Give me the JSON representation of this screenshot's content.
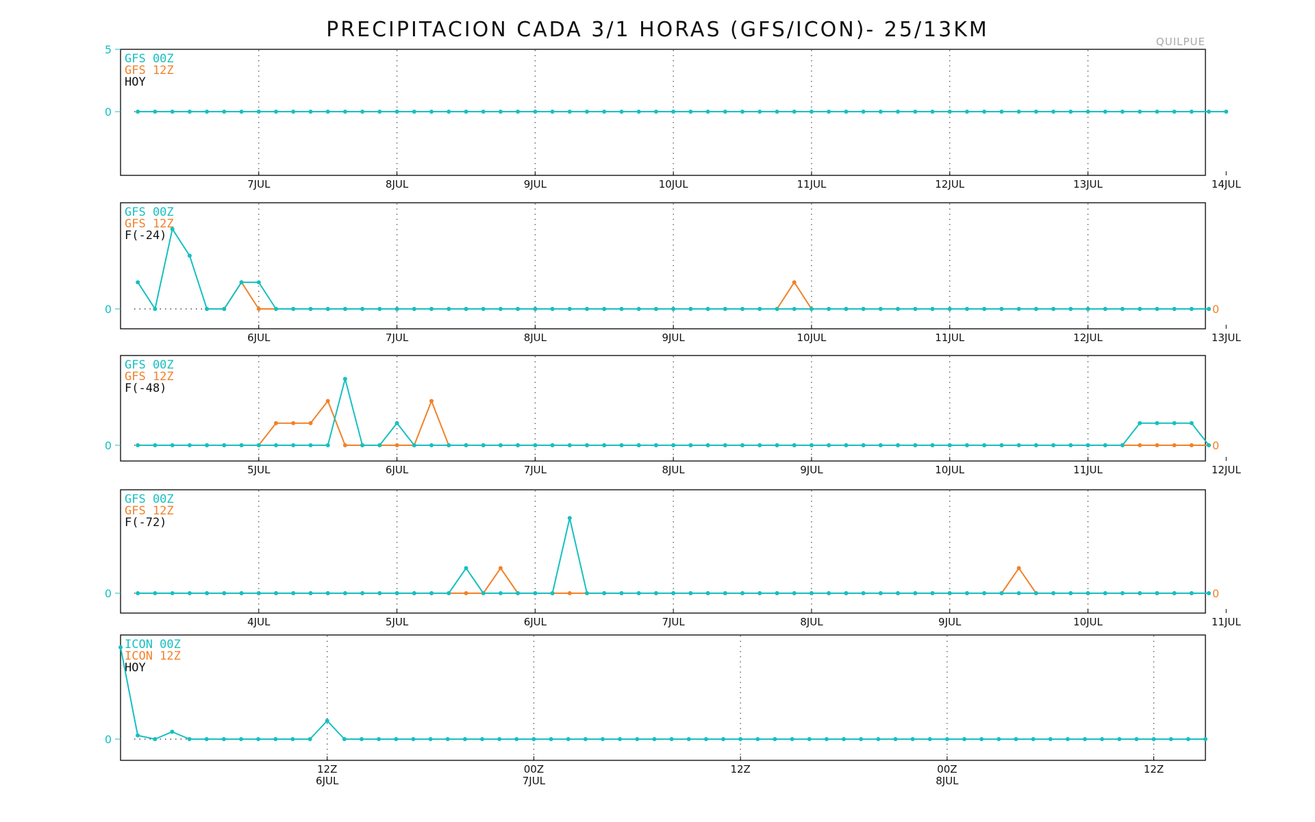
{
  "title": "PRECIPITACION CADA 3/1 HORAS (GFS/ICON)- 25/13KM",
  "station": "QUILPUE",
  "colors": {
    "gfs00": "#17bfc0",
    "gfs12": "#f0822a",
    "frame": "#000000",
    "grid": "#555555"
  },
  "chart_data": [
    {
      "type": "line",
      "legend": [
        "GFS 00Z",
        "GFS 12Z",
        "HOY"
      ],
      "y_tick_labels_left": [
        "5",
        "0"
      ],
      "y_tick_labels_right": [],
      "x_tick_labels": [
        "7JUL",
        "8JUL",
        "9JUL",
        "10JUL",
        "11JUL",
        "12JUL",
        "13JUL",
        "14JUL"
      ],
      "x_range_days": [
        0,
        7.85
      ],
      "y_range": [
        -5,
        5
      ],
      "series": [
        {
          "name": "GFS 00Z",
          "color": "#17bfc0",
          "start": 0.125,
          "step": 0.125,
          "values": [
            0,
            0,
            0,
            0,
            0,
            0,
            0,
            0,
            0,
            0,
            0,
            0,
            0,
            0,
            0,
            0,
            0,
            0,
            0,
            0,
            0,
            0,
            0,
            0,
            0,
            0,
            0,
            0,
            0,
            0,
            0,
            0,
            0,
            0,
            0,
            0,
            0,
            0,
            0,
            0,
            0,
            0,
            0,
            0,
            0,
            0,
            0,
            0,
            0,
            0,
            0,
            0,
            0,
            0,
            0,
            0,
            0,
            0,
            0,
            0,
            0,
            0,
            0,
            0
          ]
        }
      ]
    },
    {
      "type": "line",
      "legend": [
        "GFS 00Z",
        "GFS 12Z",
        "F(-24)"
      ],
      "y_tick_labels_left": [
        "0"
      ],
      "y_tick_labels_right": [
        "0"
      ],
      "x_tick_labels": [
        "6JUL",
        "7JUL",
        "8JUL",
        "9JUL",
        "10JUL",
        "11JUL",
        "12JUL",
        "13JUL"
      ],
      "x_range_days": [
        0,
        7.85
      ],
      "y_range": [
        -0.6,
        3.5
      ],
      "series": [
        {
          "name": "GFS 00Z",
          "color": "#17bfc0",
          "start": 0.125,
          "step": 0.125,
          "values": [
            1,
            0,
            3,
            2,
            0,
            0,
            1,
            1,
            0,
            0,
            0,
            0,
            0,
            0,
            0,
            0,
            0,
            0,
            0,
            0,
            0,
            0,
            0,
            0,
            0,
            0,
            0,
            0,
            0,
            0,
            0,
            0,
            0,
            0,
            0,
            0,
            0,
            0,
            0,
            0,
            0,
            0,
            0,
            0,
            0,
            0,
            0,
            0,
            0,
            0,
            0,
            0,
            0,
            0,
            0,
            0,
            0,
            0,
            0,
            0,
            0,
            0,
            0
          ]
        },
        {
          "name": "GFS 12Z",
          "color": "#f0822a",
          "start": 0.625,
          "step": 0.125,
          "values": [
            0,
            0,
            1,
            0,
            0,
            0,
            0,
            0,
            0,
            0,
            0,
            0,
            0,
            0,
            0,
            0,
            0,
            0,
            0,
            0,
            0,
            0,
            0,
            0,
            0,
            0,
            0,
            0,
            0,
            0,
            0,
            0,
            0,
            0,
            1,
            0,
            0,
            0,
            0,
            0,
            0,
            0,
            0,
            0,
            0,
            0,
            0,
            0,
            0,
            0,
            0,
            0,
            0,
            0,
            0,
            0,
            0,
            0,
            0
          ]
        }
      ]
    },
    {
      "type": "line",
      "legend": [
        "GFS 00Z",
        "GFS 12Z",
        "F(-48)"
      ],
      "y_tick_labels_left": [
        "0"
      ],
      "y_tick_labels_right": [
        "0"
      ],
      "x_tick_labels": [
        "5JUL",
        "6JUL",
        "7JUL",
        "8JUL",
        "9JUL",
        "10JUL",
        "11JUL",
        "12JUL"
      ],
      "x_range_days": [
        0,
        7.85
      ],
      "y_range": [
        -0.6,
        3.5
      ],
      "series": [
        {
          "name": "GFS 00Z",
          "color": "#17bfc0",
          "start": 0.125,
          "step": 0.125,
          "values": [
            0,
            0,
            0,
            0,
            0,
            0,
            0,
            0,
            0,
            0,
            0,
            0,
            3,
            0,
            0,
            1,
            0,
            0,
            0,
            0,
            0,
            0,
            0,
            0,
            0,
            0,
            0,
            0,
            0,
            0,
            0,
            0,
            0,
            0,
            0,
            0,
            0,
            0,
            0,
            0,
            0,
            0,
            0,
            0,
            0,
            0,
            0,
            0,
            0,
            0,
            0,
            0,
            0,
            0,
            0,
            0,
            0,
            0,
            1,
            1,
            1,
            1,
            0
          ]
        },
        {
          "name": "GFS 12Z",
          "color": "#f0822a",
          "start": 0.625,
          "step": 0.125,
          "values": [
            0,
            0,
            0,
            0,
            1,
            1,
            1,
            2,
            0,
            0,
            0,
            0,
            0,
            2,
            0,
            0,
            0,
            0,
            0,
            0,
            0,
            0,
            0,
            0,
            0,
            0,
            0,
            0,
            0,
            0,
            0,
            0,
            0,
            0,
            0,
            0,
            0,
            0,
            0,
            0,
            0,
            0,
            0,
            0,
            0,
            0,
            0,
            0,
            0,
            0,
            0,
            0,
            0,
            0,
            0,
            0,
            0,
            0,
            0
          ]
        }
      ]
    },
    {
      "type": "line",
      "legend": [
        "GFS 00Z",
        "GFS 12Z",
        "F(-72)"
      ],
      "y_tick_labels_left": [
        "0"
      ],
      "y_tick_labels_right": [
        "0"
      ],
      "x_tick_labels": [
        "4JUL",
        "5JUL",
        "6JUL",
        "7JUL",
        "8JUL",
        "9JUL",
        "10JUL",
        "11JUL"
      ],
      "x_range_days": [
        0,
        7.85
      ],
      "y_range": [
        -0.6,
        3.5
      ],
      "series": [
        {
          "name": "GFS 00Z",
          "color": "#17bfc0",
          "start": 0.125,
          "step": 0.125,
          "values": [
            0,
            0,
            0,
            0,
            0,
            0,
            0,
            0,
            0,
            0,
            0,
            0,
            0,
            0,
            0,
            0,
            0,
            0,
            0,
            1,
            0,
            0,
            0,
            0,
            0,
            3,
            0,
            0,
            0,
            0,
            0,
            0,
            0,
            0,
            0,
            0,
            0,
            0,
            0,
            0,
            0,
            0,
            0,
            0,
            0,
            0,
            0,
            0,
            0,
            0,
            0,
            0,
            0,
            0,
            0,
            0,
            0,
            0,
            0,
            0,
            0,
            0,
            0
          ]
        },
        {
          "name": "GFS 12Z",
          "color": "#f0822a",
          "start": 0.625,
          "step": 0.125,
          "values": [
            0,
            0,
            0,
            0,
            0,
            0,
            0,
            0,
            0,
            0,
            0,
            0,
            0,
            0,
            0,
            0,
            0,
            1,
            0,
            0,
            0,
            0,
            0,
            0,
            0,
            0,
            0,
            0,
            0,
            0,
            0,
            0,
            0,
            0,
            0,
            0,
            0,
            0,
            0,
            0,
            0,
            0,
            0,
            0,
            0,
            0,
            0,
            1,
            0,
            0,
            0,
            0,
            0,
            0,
            0,
            0,
            0,
            0,
            0
          ]
        }
      ]
    },
    {
      "type": "line",
      "legend": [
        "ICON 00Z",
        "ICON 12Z",
        "HOY"
      ],
      "y_tick_labels_left": [
        "0"
      ],
      "y_tick_labels_right": [],
      "x_tick_labels": [
        "12Z",
        "00Z",
        "12Z",
        "00Z",
        "12Z"
      ],
      "x_tick_sublabels": [
        "6JUL",
        "7JUL",
        "",
        "8JUL",
        ""
      ],
      "x_range_hours": [
        0,
        63
      ],
      "y_range": [
        -1,
        5
      ],
      "series": [
        {
          "name": "ICON 00Z",
          "color": "#17bfc0",
          "start": 0,
          "step": 1,
          "values": [
            5,
            0.2,
            0,
            0.4,
            0,
            0,
            0,
            0,
            0,
            0,
            0,
            0,
            1,
            0,
            0,
            0,
            0,
            0,
            0,
            0,
            0,
            0,
            0,
            0,
            0,
            0,
            0,
            0,
            0,
            0,
            0,
            0,
            0,
            0,
            0,
            0,
            0,
            0,
            0,
            0,
            0,
            0,
            0,
            0,
            0,
            0,
            0,
            0,
            0,
            0,
            0,
            0,
            0,
            0,
            0,
            0,
            0,
            0,
            0,
            0,
            0,
            0,
            0,
            0
          ]
        }
      ]
    }
  ]
}
